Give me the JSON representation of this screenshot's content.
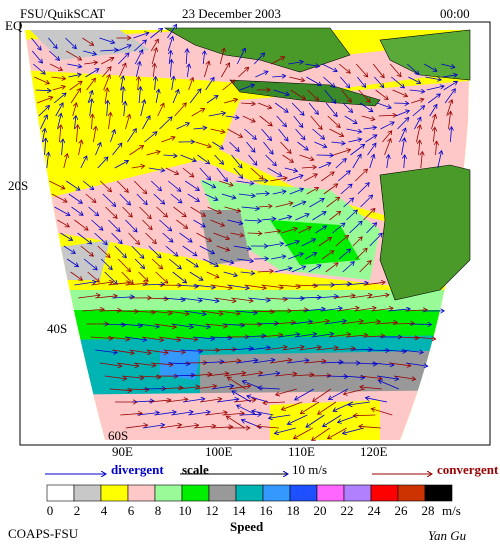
{
  "header": {
    "title": "FSU/QuikSCAT",
    "date": "23 December 2003",
    "time": "00:00"
  },
  "map": {
    "lat_labels": [
      "EQ",
      "20S",
      "40S",
      "60S"
    ],
    "lon_labels": [
      "90E",
      "100E",
      "110E",
      "120E"
    ]
  },
  "legend": {
    "divergent": "divergent",
    "scale": "scale",
    "scale_value": "10 m/s",
    "convergent": "convergent"
  },
  "colorbar": {
    "ticks": [
      0,
      2,
      4,
      6,
      8,
      10,
      12,
      14,
      16,
      18,
      20,
      22,
      24,
      26,
      28
    ],
    "colors": [
      "#ffffff",
      "#c8c8c8",
      "#ffff00",
      "#ffc8c8",
      "#98fb98",
      "#00ee00",
      "#999999",
      "#00b4b4",
      "#3399ff",
      "#1e50ff",
      "#ff66ff",
      "#b080ff",
      "#ff0000",
      "#cc3300",
      "#000000"
    ],
    "unit": "m/s",
    "label": "Speed"
  },
  "footer": {
    "left": "COAPS-FSU",
    "right": "Yan Gu"
  }
}
